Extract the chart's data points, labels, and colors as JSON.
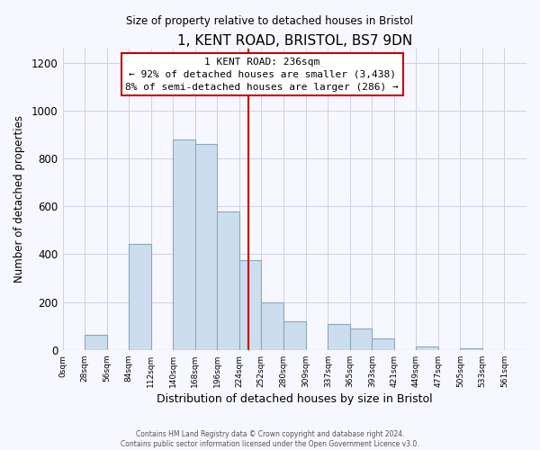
{
  "title": "1, KENT ROAD, BRISTOL, BS7 9DN",
  "subtitle": "Size of property relative to detached houses in Bristol",
  "xlabel": "Distribution of detached houses by size in Bristol",
  "ylabel": "Number of detached properties",
  "bar_labels": [
    "0sqm",
    "28sqm",
    "56sqm",
    "84sqm",
    "112sqm",
    "140sqm",
    "168sqm",
    "196sqm",
    "224sqm",
    "252sqm",
    "280sqm",
    "309sqm",
    "337sqm",
    "365sqm",
    "393sqm",
    "421sqm",
    "449sqm",
    "477sqm",
    "505sqm",
    "533sqm",
    "561sqm"
  ],
  "bar_values": [
    0,
    65,
    0,
    443,
    0,
    880,
    860,
    580,
    375,
    200,
    120,
    0,
    110,
    90,
    50,
    0,
    15,
    0,
    5,
    0,
    0
  ],
  "bin_edges": [
    0,
    28,
    56,
    84,
    112,
    140,
    168,
    196,
    224,
    252,
    280,
    309,
    337,
    365,
    393,
    421,
    449,
    477,
    505,
    533,
    561,
    589
  ],
  "bar_color": "#ccdded",
  "bar_edgecolor": "#88aabb",
  "vline_x": 236,
  "vline_color": "#cc0000",
  "annotation_title": "1 KENT ROAD: 236sqm",
  "annotation_line1": "← 92% of detached houses are smaller (3,438)",
  "annotation_line2": "8% of semi-detached houses are larger (286) →",
  "annotation_box_color": "#cc0000",
  "ylim": [
    0,
    1260
  ],
  "yticks": [
    0,
    200,
    400,
    600,
    800,
    1000,
    1200
  ],
  "footer1": "Contains HM Land Registry data © Crown copyright and database right 2024.",
  "footer2": "Contains public sector information licensed under the Open Government Licence v3.0.",
  "bg_color": "#f7f7ff",
  "grid_color": "#d0d0e8"
}
